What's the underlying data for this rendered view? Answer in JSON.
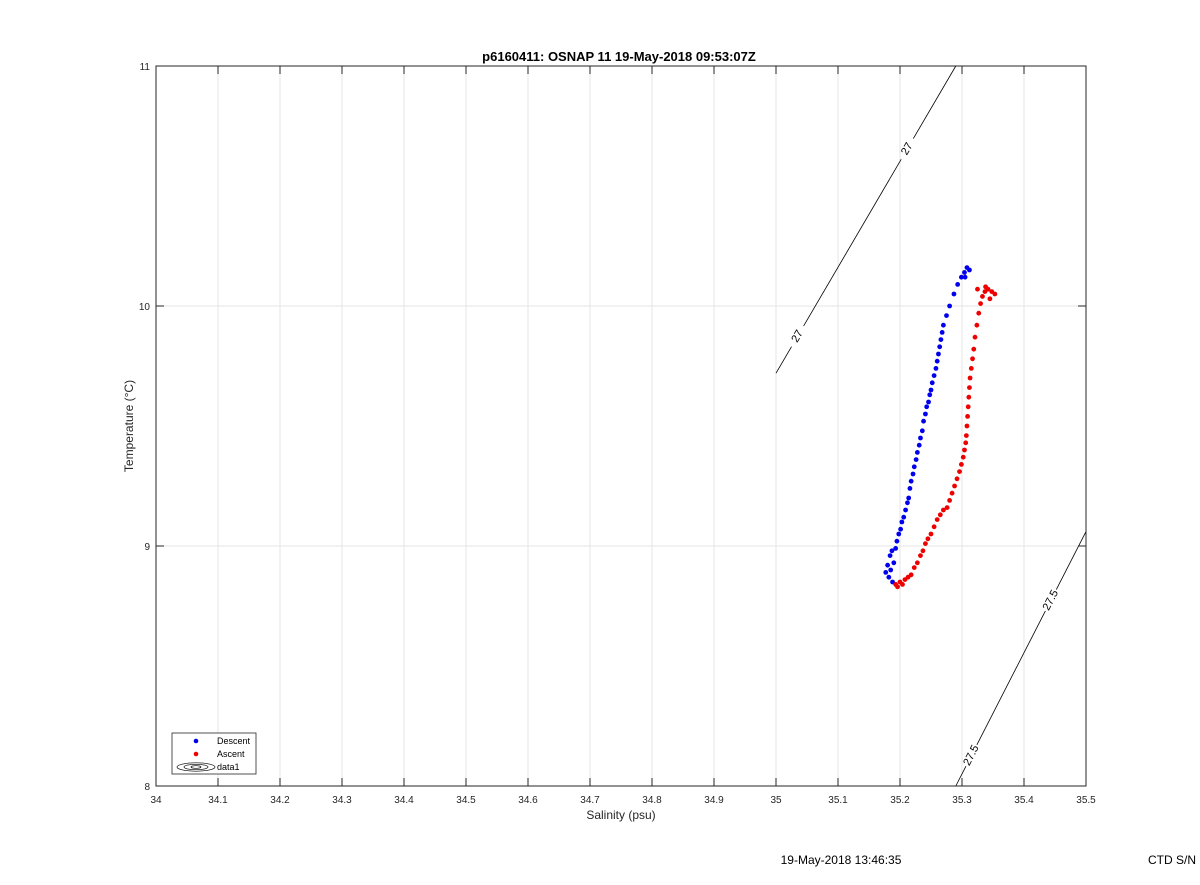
{
  "chart_data": {
    "type": "scatter",
    "title": "p6160411: OSNAP 11 19-May-2018 09:53:07Z",
    "xlabel": "Salinity (psu)",
    "ylabel": "Temperature (°C)",
    "xlim": [
      34,
      35.5
    ],
    "ylim": [
      8,
      11
    ],
    "grid": true,
    "legend_position": "bottom-left",
    "x_ticks": [
      "34",
      "34.1",
      "34.2",
      "34.3",
      "34.4",
      "34.5",
      "34.6",
      "34.7",
      "34.8",
      "34.9",
      "35",
      "35.1",
      "35.2",
      "35.3",
      "35.4",
      "35.5"
    ],
    "y_ticks": [
      "8",
      "9",
      "10",
      "11"
    ],
    "series": [
      {
        "name": "Descent",
        "color": "#0000ee",
        "points": [
          [
            35.177,
            8.89
          ],
          [
            35.18,
            8.92
          ],
          [
            35.182,
            8.87
          ],
          [
            35.184,
            8.96
          ],
          [
            35.185,
            8.9
          ],
          [
            35.187,
            8.98
          ],
          [
            35.188,
            8.85
          ],
          [
            35.19,
            8.93
          ],
          [
            35.193,
            8.99
          ],
          [
            35.195,
            9.02
          ],
          [
            35.198,
            9.05
          ],
          [
            35.201,
            9.07
          ],
          [
            35.203,
            9.1
          ],
          [
            35.206,
            9.12
          ],
          [
            35.209,
            9.15
          ],
          [
            35.212,
            9.18
          ],
          [
            35.214,
            9.2
          ],
          [
            35.216,
            9.24
          ],
          [
            35.218,
            9.27
          ],
          [
            35.221,
            9.3
          ],
          [
            35.223,
            9.33
          ],
          [
            35.226,
            9.36
          ],
          [
            35.228,
            9.39
          ],
          [
            35.231,
            9.42
          ],
          [
            35.233,
            9.45
          ],
          [
            35.236,
            9.48
          ],
          [
            35.238,
            9.52
          ],
          [
            35.241,
            9.55
          ],
          [
            35.243,
            9.58
          ],
          [
            35.246,
            9.6
          ],
          [
            35.248,
            9.63
          ],
          [
            35.25,
            9.65
          ],
          [
            35.252,
            9.68
          ],
          [
            35.255,
            9.71
          ],
          [
            35.258,
            9.74
          ],
          [
            35.26,
            9.77
          ],
          [
            35.262,
            9.8
          ],
          [
            35.264,
            9.83
          ],
          [
            35.266,
            9.86
          ],
          [
            35.268,
            9.89
          ],
          [
            35.27,
            9.92
          ],
          [
            35.275,
            9.96
          ],
          [
            35.28,
            10.0
          ],
          [
            35.287,
            10.05
          ],
          [
            35.293,
            10.09
          ],
          [
            35.299,
            10.12
          ],
          [
            35.304,
            10.14
          ],
          [
            35.308,
            10.16
          ],
          [
            35.312,
            10.15
          ],
          [
            35.305,
            10.12
          ]
        ]
      },
      {
        "name": "Ascent",
        "color": "#ee0000",
        "points": [
          [
            35.193,
            8.84
          ],
          [
            35.196,
            8.83
          ],
          [
            35.2,
            8.85
          ],
          [
            35.204,
            8.84
          ],
          [
            35.208,
            8.86
          ],
          [
            35.213,
            8.87
          ],
          [
            35.218,
            8.88
          ],
          [
            35.223,
            8.91
          ],
          [
            35.228,
            8.93
          ],
          [
            35.233,
            8.96
          ],
          [
            35.237,
            8.98
          ],
          [
            35.241,
            9.01
          ],
          [
            35.245,
            9.03
          ],
          [
            35.25,
            9.05
          ],
          [
            35.255,
            9.08
          ],
          [
            35.26,
            9.11
          ],
          [
            35.265,
            9.13
          ],
          [
            35.27,
            9.15
          ],
          [
            35.276,
            9.16
          ],
          [
            35.28,
            9.19
          ],
          [
            35.284,
            9.22
          ],
          [
            35.288,
            9.25
          ],
          [
            35.292,
            9.28
          ],
          [
            35.296,
            9.31
          ],
          [
            35.299,
            9.34
          ],
          [
            35.302,
            9.37
          ],
          [
            35.304,
            9.4
          ],
          [
            35.306,
            9.43
          ],
          [
            35.307,
            9.46
          ],
          [
            35.308,
            9.5
          ],
          [
            35.309,
            9.54
          ],
          [
            35.31,
            9.58
          ],
          [
            35.311,
            9.62
          ],
          [
            35.312,
            9.66
          ],
          [
            35.313,
            9.7
          ],
          [
            35.315,
            9.74
          ],
          [
            35.317,
            9.78
          ],
          [
            35.319,
            9.82
          ],
          [
            35.321,
            9.87
          ],
          [
            35.324,
            9.92
          ],
          [
            35.327,
            9.97
          ],
          [
            35.33,
            10.01
          ],
          [
            35.333,
            10.04
          ],
          [
            35.337,
            10.06
          ],
          [
            35.342,
            10.07
          ],
          [
            35.348,
            10.06
          ],
          [
            35.353,
            10.05
          ],
          [
            35.345,
            10.03
          ],
          [
            35.338,
            10.08
          ],
          [
            35.325,
            10.07
          ]
        ]
      }
    ],
    "legend": [
      "Descent",
      "Ascent",
      "data1"
    ],
    "contours": [
      {
        "level": "27",
        "line": [
          [
            35.0,
            9.72
          ],
          [
            35.29,
            11.0
          ]
        ]
      },
      {
        "level": "27.5",
        "line": [
          [
            35.29,
            8.0
          ],
          [
            35.5,
            9.06
          ]
        ]
      }
    ]
  },
  "footer": {
    "timestamp": "19-May-2018 13:46:35",
    "ctd_label": "CTD S/N"
  }
}
